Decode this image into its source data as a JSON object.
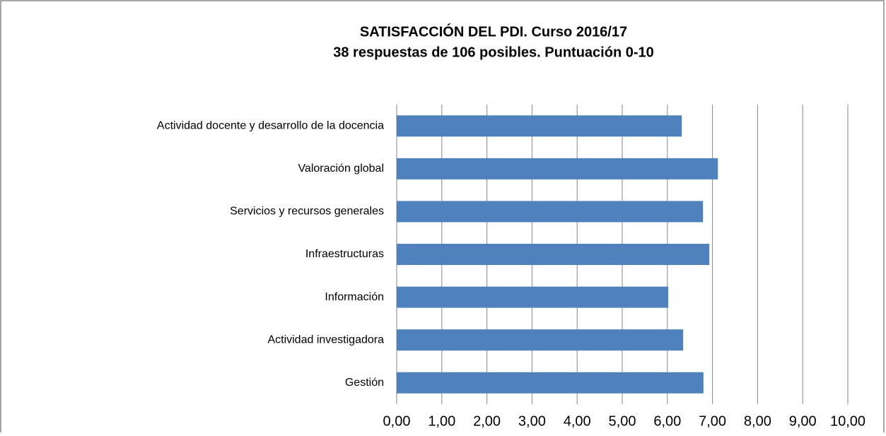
{
  "chart_data": {
    "type": "bar",
    "orientation": "horizontal",
    "title": "SATISFACCIÓN DEL PDI. Curso 2016/17",
    "subtitle": "38 respuestas de 106 posibles. Puntuación 0-10",
    "categories": [
      "Actividad docente y desarrollo de la docencia",
      "Valoración global",
      "Servicios y recursos generales",
      "Infraestructuras",
      "Información",
      "Actividad investigadora",
      "Gestión"
    ],
    "values": [
      6.32,
      7.12,
      6.79,
      6.93,
      6.02,
      6.35,
      6.8
    ],
    "color": "#4f81bd",
    "xlim": [
      0,
      10
    ],
    "xticks": [
      {
        "value": 0,
        "label": "0,00"
      },
      {
        "value": 1,
        "label": "1,00"
      },
      {
        "value": 2,
        "label": "2,00"
      },
      {
        "value": 3,
        "label": "3,00"
      },
      {
        "value": 4,
        "label": "4,00"
      },
      {
        "value": 5,
        "label": "5,00"
      },
      {
        "value": 6,
        "label": "6,00"
      },
      {
        "value": 7,
        "label": "7,00"
      },
      {
        "value": 8,
        "label": "8,00"
      },
      {
        "value": 9,
        "label": "9,00"
      },
      {
        "value": 10,
        "label": "10,00"
      }
    ],
    "grid": true
  }
}
